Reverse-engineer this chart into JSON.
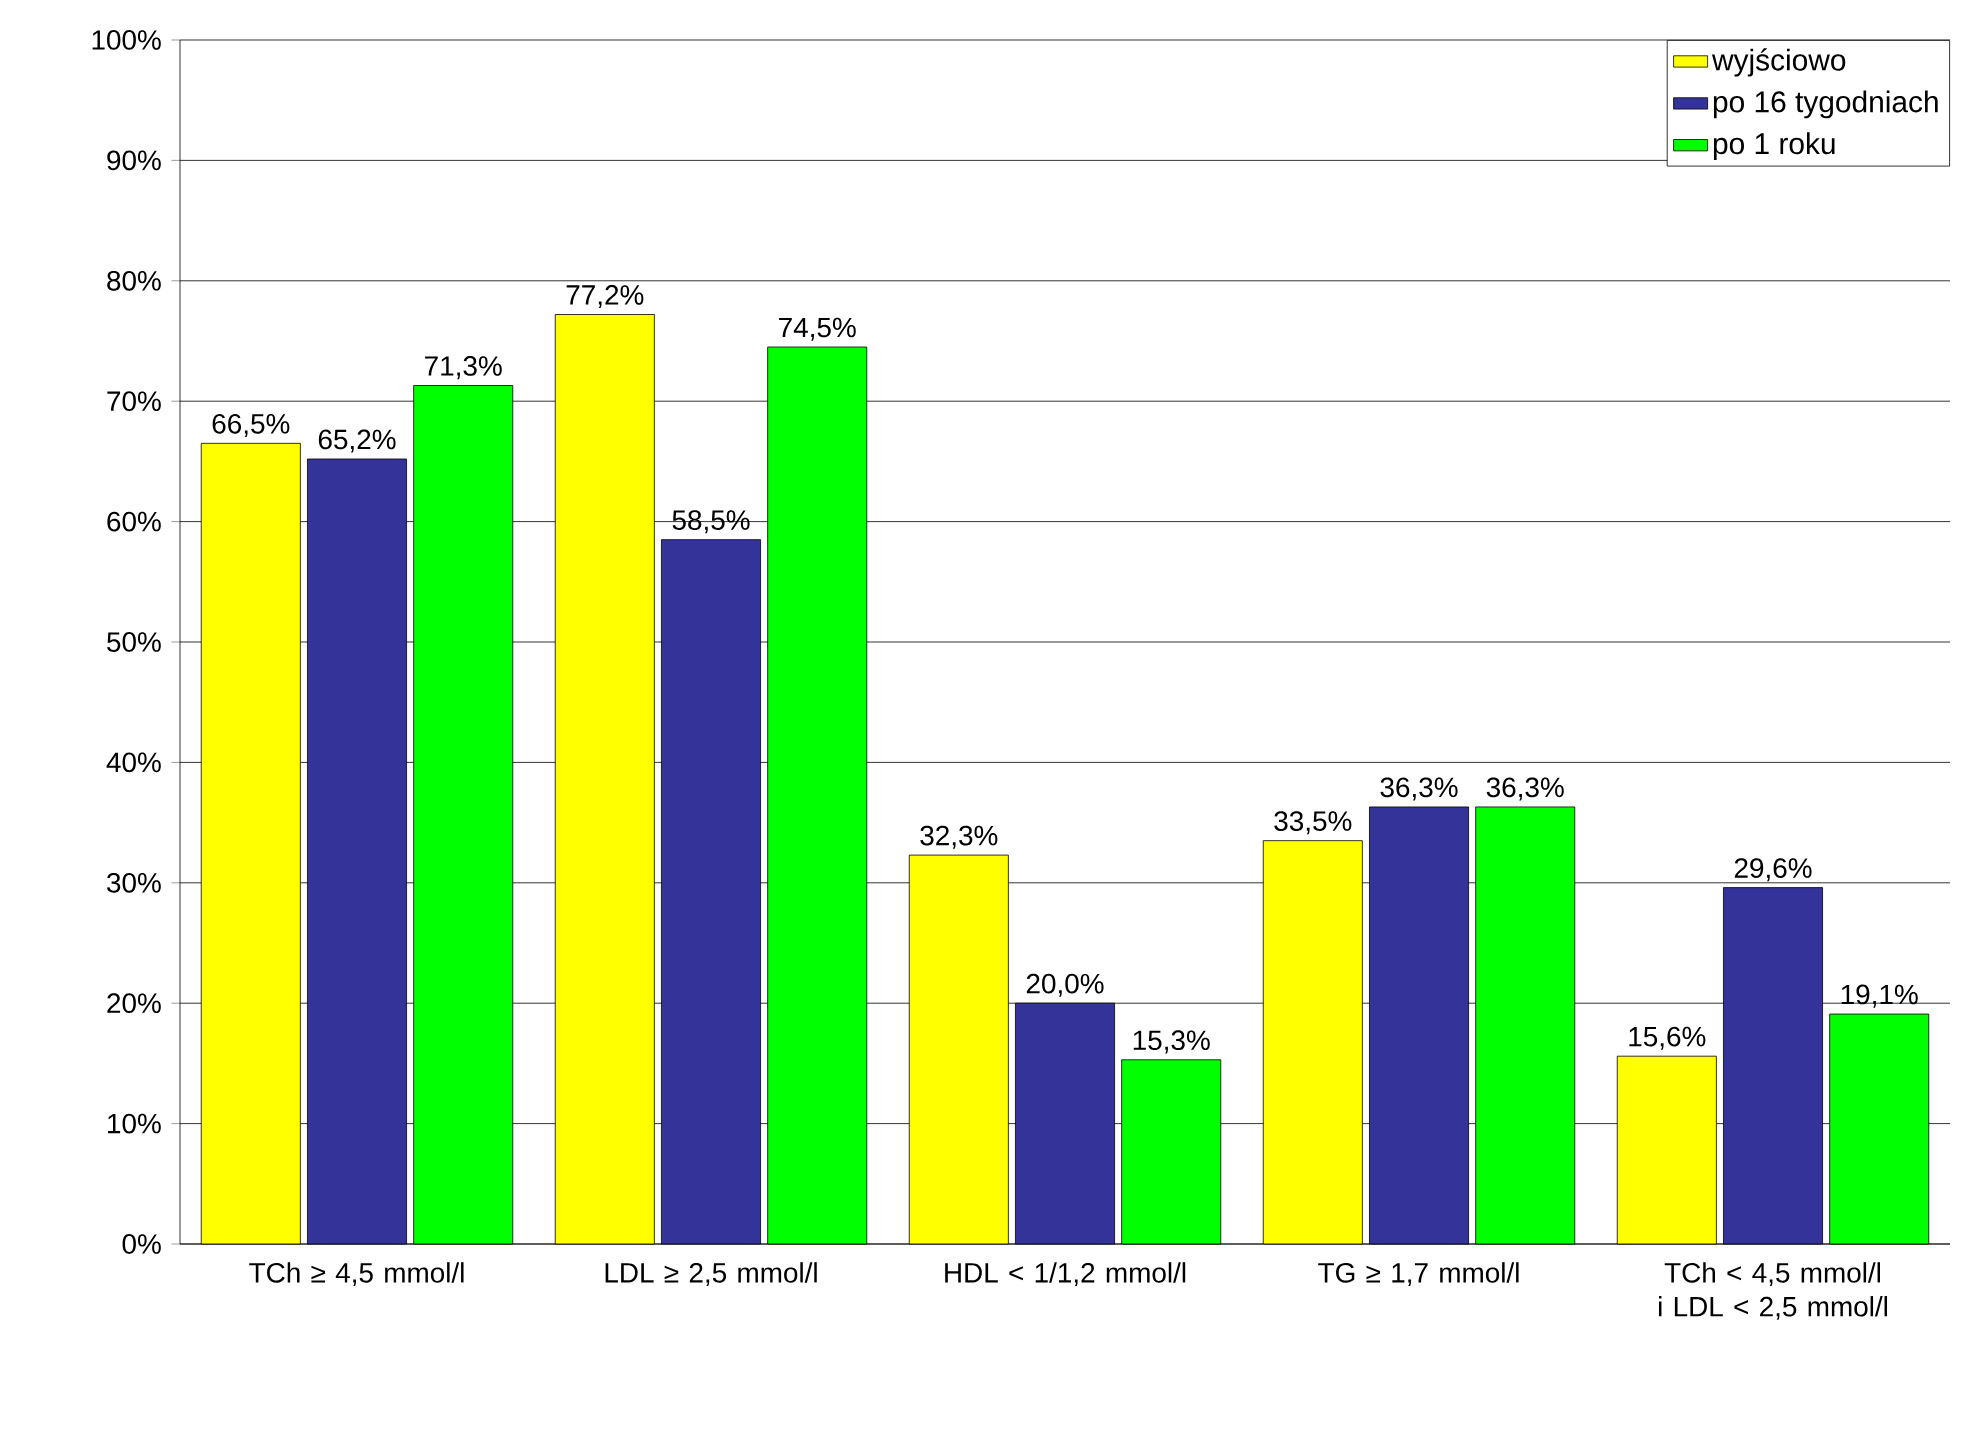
{
  "chart_data": {
    "type": "bar",
    "categories": [
      "TCh ≥ 4,5 mmol/l",
      "LDL ≥ 2,5 mmol/l",
      "HDL < 1/1,2 mmol/l",
      "TG ≥ 1,7 mmol/l",
      "TCh < 4,5 mmol/l i LDL < 2,5 mmol/l"
    ],
    "series": [
      {
        "name": "wyjściowo",
        "color": "#ffff00",
        "values": [
          66.5,
          77.2,
          32.3,
          33.5,
          15.6
        ],
        "value_labels": [
          "66,5%",
          "77,2%",
          "32,3%",
          "33,5%",
          "15,6%"
        ]
      },
      {
        "name": "po 16 tygodniach",
        "color": "#333399",
        "values": [
          65.2,
          58.5,
          20.0,
          36.3,
          29.6
        ],
        "value_labels": [
          "65,2%",
          "58,5%",
          "20,0%",
          "36,3%",
          "29,6%"
        ]
      },
      {
        "name": "po 1 roku",
        "color": "#00ff00",
        "values": [
          71.3,
          74.5,
          15.3,
          36.3,
          19.1
        ],
        "value_labels": [
          "71,3%",
          "74,5%",
          "15,3%",
          "36,3%",
          "19,1%"
        ]
      }
    ],
    "ylim": [
      0,
      100
    ],
    "yticks": [
      {
        "value": 0,
        "label": "0%"
      },
      {
        "value": 10,
        "label": "10%"
      },
      {
        "value": 20,
        "label": "20%"
      },
      {
        "value": 30,
        "label": "30%"
      },
      {
        "value": 40,
        "label": "40%"
      },
      {
        "value": 50,
        "label": "50%"
      },
      {
        "value": 60,
        "label": "60%"
      },
      {
        "value": 70,
        "label": "70%"
      },
      {
        "value": 80,
        "label": "80%"
      },
      {
        "value": 90,
        "label": "90%"
      },
      {
        "value": 100,
        "label": "100%"
      }
    ],
    "grid": "y",
    "legend": "top right"
  }
}
